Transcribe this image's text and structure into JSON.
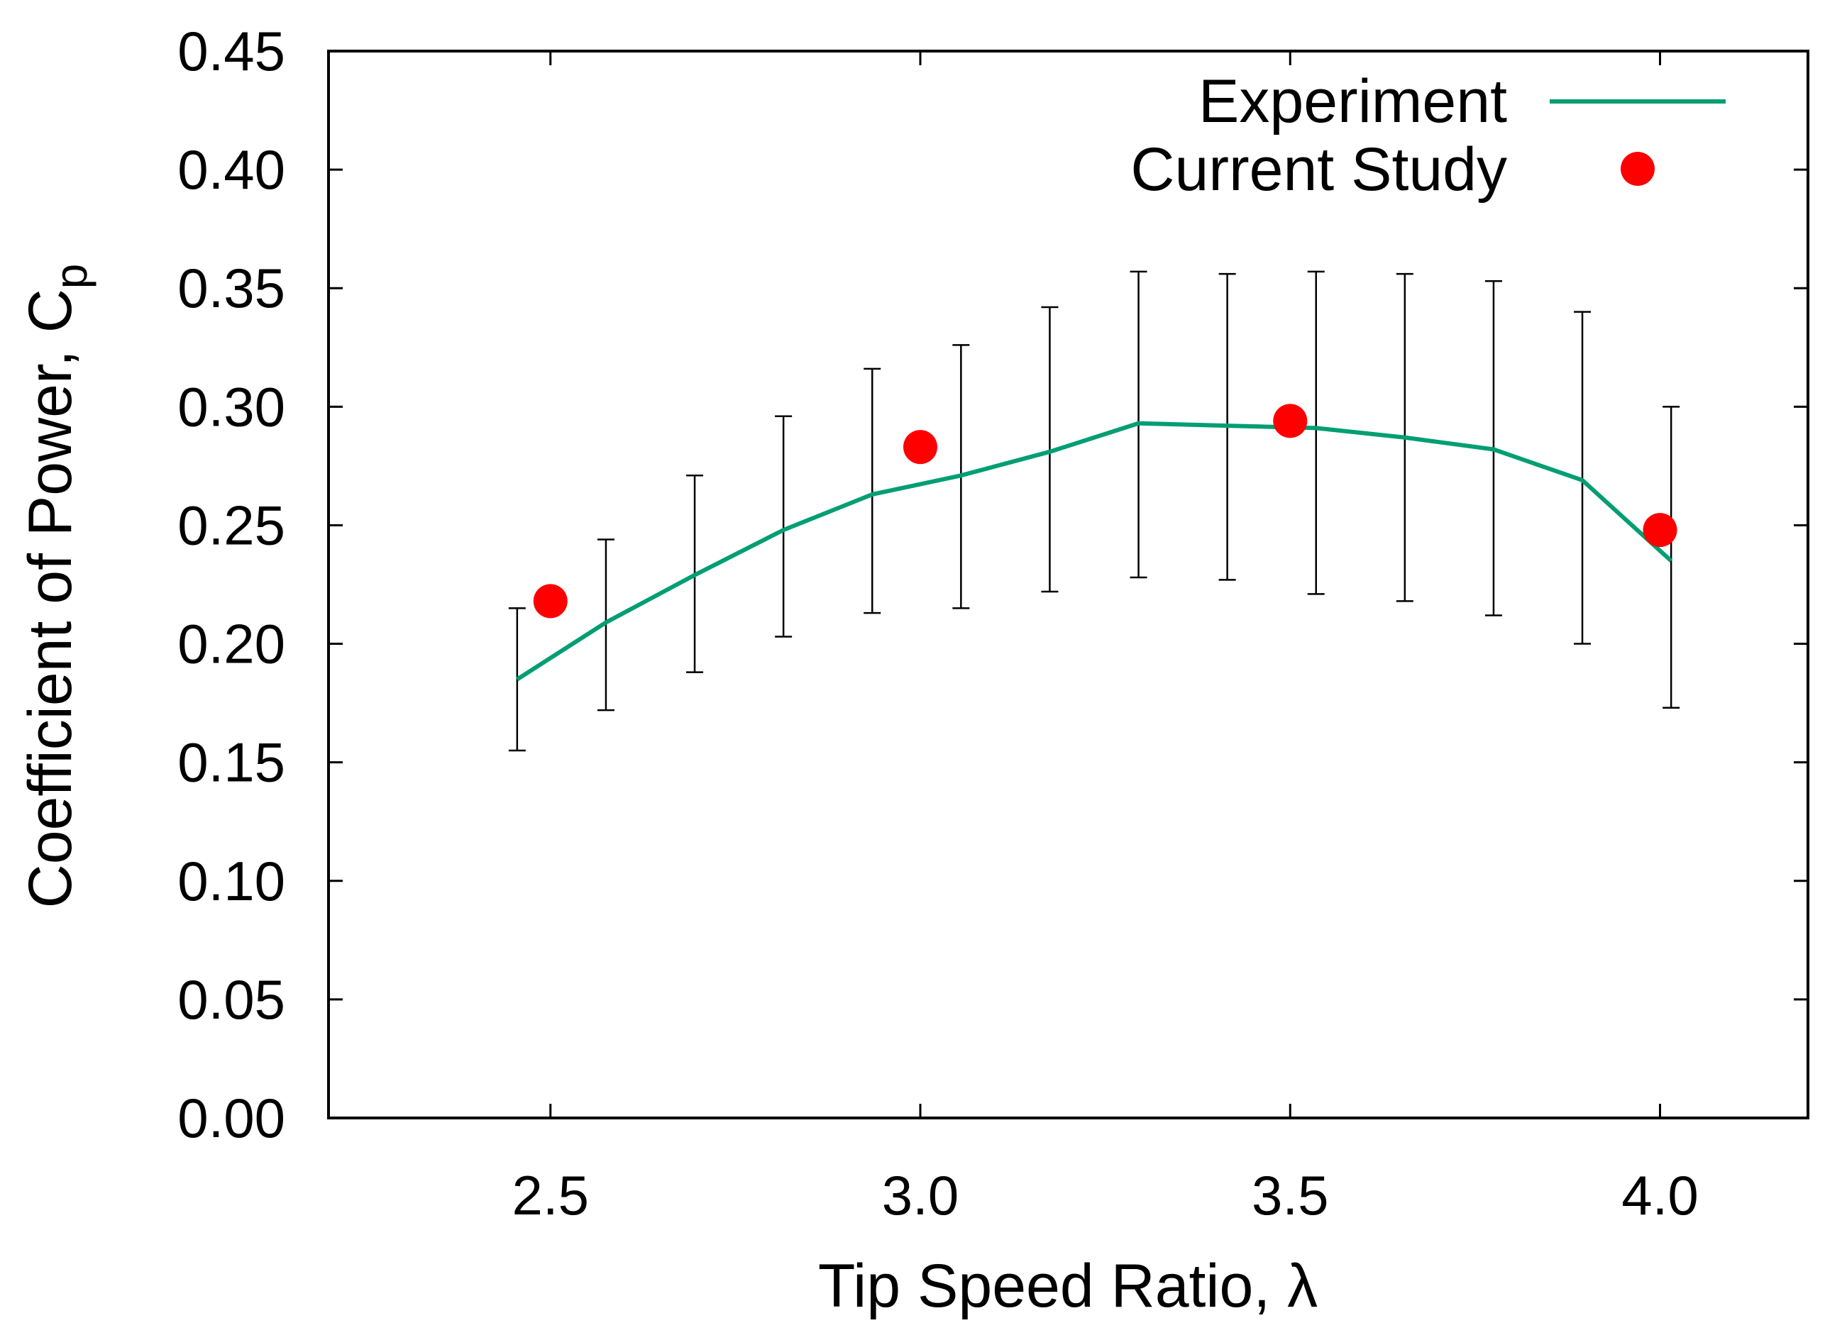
{
  "chart_data": {
    "type": "line",
    "title": "",
    "xlabel": "Tip Speed Ratio, λ",
    "ylabel": {
      "main": "Coefficient of Power, C",
      "subscript": "p"
    },
    "xlim": [
      2.2,
      4.2
    ],
    "ylim": [
      0.0,
      0.45
    ],
    "x_ticks": [
      2.5,
      3.0,
      3.5,
      4.0
    ],
    "x_tick_labels": [
      "2.5",
      "3.0",
      "3.5",
      "4.0"
    ],
    "y_ticks": [
      0.0,
      0.05,
      0.1,
      0.15,
      0.2,
      0.25,
      0.3,
      0.35,
      0.4,
      0.45
    ],
    "y_tick_labels": [
      "0.00",
      "0.05",
      "0.10",
      "0.15",
      "0.20",
      "0.25",
      "0.30",
      "0.35",
      "0.40",
      "0.45"
    ],
    "grid": false,
    "legend_position": "top-right",
    "series": [
      {
        "name": "Experiment",
        "kind": "line",
        "color": "#009e73",
        "x": [
          2.455,
          2.575,
          2.695,
          2.815,
          2.935,
          3.055,
          3.175,
          3.295,
          3.415,
          3.535,
          3.655,
          3.775,
          3.895,
          4.015
        ],
        "y": [
          0.185,
          0.209,
          0.229,
          0.248,
          0.263,
          0.271,
          0.281,
          0.293,
          0.292,
          0.291,
          0.287,
          0.282,
          0.269,
          0.235
        ],
        "err_low": [
          0.155,
          0.172,
          0.188,
          0.203,
          0.213,
          0.215,
          0.222,
          0.228,
          0.227,
          0.221,
          0.218,
          0.212,
          0.2,
          0.173
        ],
        "err_high": [
          0.215,
          0.244,
          0.271,
          0.296,
          0.316,
          0.326,
          0.342,
          0.357,
          0.356,
          0.357,
          0.356,
          0.353,
          0.34,
          0.3
        ]
      },
      {
        "name": "Current Study",
        "kind": "scatter",
        "color": "#ff0000",
        "x": [
          2.5,
          3.0,
          3.5,
          4.0
        ],
        "y": [
          0.218,
          0.283,
          0.294,
          0.248
        ]
      }
    ]
  }
}
